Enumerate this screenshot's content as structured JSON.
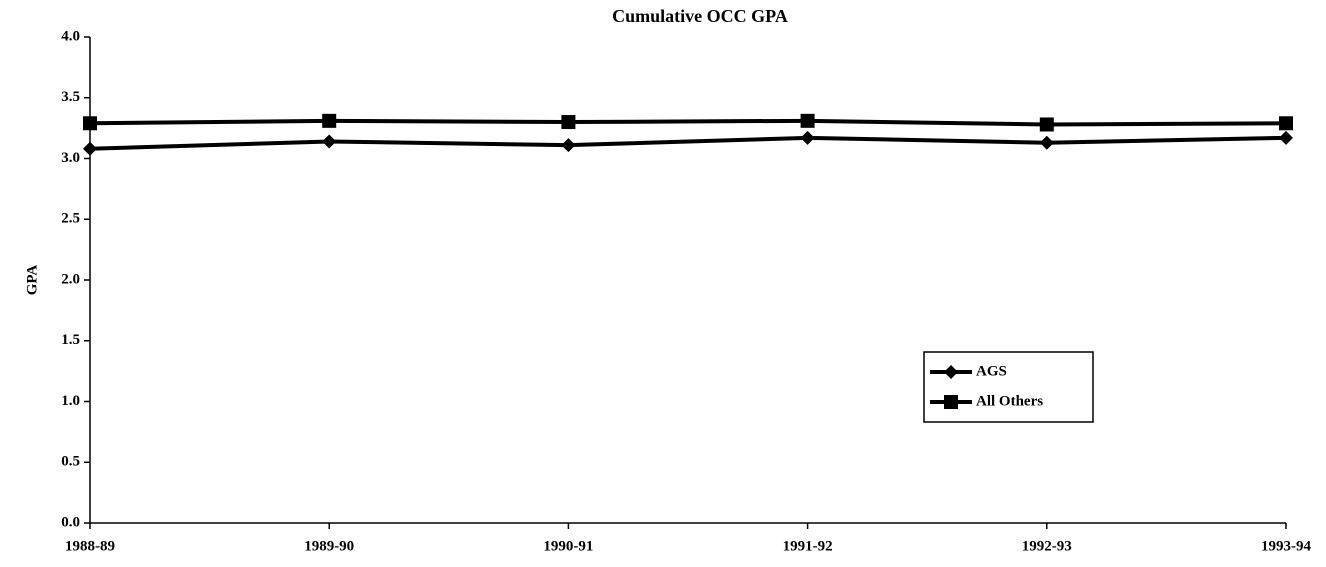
{
  "chart_data": {
    "type": "line",
    "title": "Cumulative OCC GPA",
    "y_label": "GPA",
    "categories": [
      "1988-89",
      "1989-90",
      "1990-91",
      "1991-92",
      "1992-93",
      "1993-94"
    ],
    "series": [
      {
        "name": "AGS",
        "color": "#000000",
        "marker": "diamond",
        "values": [
          3.08,
          3.14,
          3.11,
          3.17,
          3.13,
          3.17
        ]
      },
      {
        "name": "All Others",
        "color": "#000000",
        "marker": "square",
        "values": [
          3.29,
          3.31,
          3.3,
          3.31,
          3.28,
          3.29
        ]
      }
    ],
    "ylim": [
      0,
      4
    ],
    "yticks": [
      {
        "value": 0,
        "label": "0.0"
      },
      0.5,
      {
        "value": 1,
        "label": "1.0"
      },
      1.5,
      {
        "value": 2,
        "label": "2.0"
      },
      2.5,
      {
        "value": 3,
        "label": "3.0"
      },
      3.5,
      {
        "value": 4,
        "label": "4.0"
      }
    ],
    "grid": false,
    "legend": "right"
  }
}
